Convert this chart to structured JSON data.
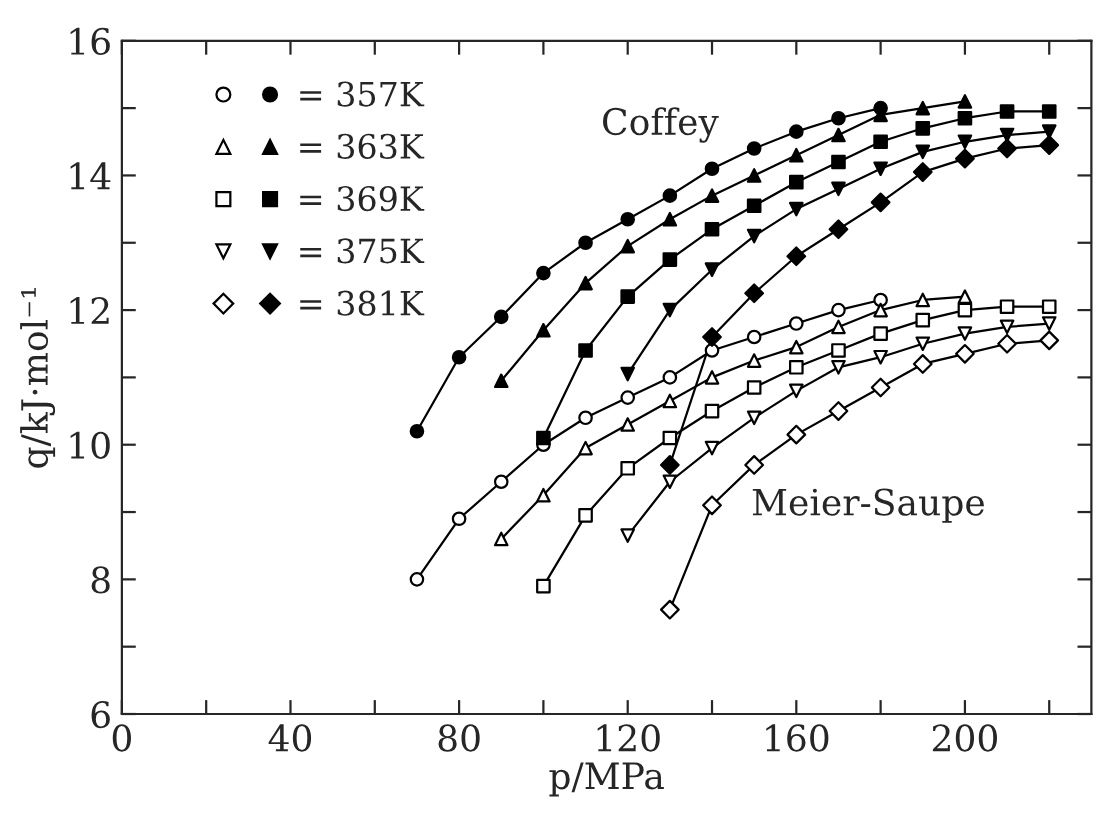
{
  "chart_data": {
    "type": "line",
    "xlabel": "p/MPa",
    "ylabel": "q/kJ·mol⁻¹",
    "xlim": [
      0,
      230
    ],
    "ylim": [
      6,
      16
    ],
    "xticks": [
      0,
      {
        "value": 20,
        "label": null
      },
      40,
      {
        "value": 60,
        "label": null
      },
      80,
      {
        "value": 100,
        "label": null
      },
      120,
      {
        "value": 140,
        "label": null
      },
      160,
      {
        "value": 180,
        "label": null
      },
      200,
      {
        "value": 220,
        "label": null
      }
    ],
    "yticks": [
      6,
      {
        "value": 7,
        "label": null
      },
      8,
      {
        "value": 9,
        "label": null
      },
      10,
      {
        "value": 11,
        "label": null
      },
      12,
      {
        "value": 13,
        "label": null
      },
      14,
      {
        "value": 15,
        "label": null
      },
      16
    ],
    "legend": "top left",
    "grid": false,
    "annotations": [
      "Coffey",
      "Meier-Saupe"
    ],
    "series": [
      {
        "color": "#ffffff",
        "marker": "circle",
        "x": [
          70,
          80,
          90,
          100,
          110,
          120,
          130,
          140,
          150,
          160,
          170,
          180
        ],
        "values": [
          8.0,
          8.9,
          9.45,
          10.0,
          10.4,
          10.7,
          11.0,
          11.4,
          11.6,
          11.8,
          12.0,
          12.15
        ]
      },
      {
        "name": "= 357K",
        "color": "#000000",
        "marker": "circle",
        "x": [
          70,
          80,
          90,
          100,
          110,
          120,
          130,
          140,
          150,
          160,
          170,
          180
        ],
        "values": [
          10.2,
          11.3,
          11.9,
          12.55,
          13.0,
          13.35,
          13.7,
          14.1,
          14.4,
          14.65,
          14.85,
          15.0
        ]
      },
      {
        "color": "#ffffff",
        "marker": "triangle",
        "x": [
          90,
          100,
          110,
          120,
          130,
          140,
          150,
          160,
          170,
          180,
          190,
          200
        ],
        "values": [
          8.6,
          9.25,
          9.95,
          10.3,
          10.65,
          11.0,
          11.25,
          11.45,
          11.75,
          12.0,
          12.15,
          12.2
        ]
      },
      {
        "name": "= 363K",
        "color": "#000000",
        "marker": "triangle",
        "x": [
          90,
          100,
          110,
          120,
          130,
          140,
          150,
          160,
          170,
          180,
          190,
          200
        ],
        "values": [
          10.95,
          11.7,
          12.4,
          12.95,
          13.35,
          13.7,
          14.0,
          14.3,
          14.6,
          14.9,
          15.0,
          15.1
        ]
      },
      {
        "color": "#ffffff",
        "marker": "square",
        "x": [
          100,
          110,
          120,
          130,
          140,
          150,
          160,
          170,
          180,
          190,
          200,
          210,
          220
        ],
        "values": [
          7.9,
          8.95,
          9.65,
          10.1,
          10.5,
          10.85,
          11.15,
          11.4,
          11.65,
          11.85,
          12.0,
          12.05,
          12.05
        ]
      },
      {
        "name": "= 369K",
        "color": "#000000",
        "marker": "square",
        "x": [
          100,
          110,
          120,
          130,
          140,
          150,
          160,
          170,
          180,
          190,
          200,
          210,
          220
        ],
        "values": [
          10.1,
          11.4,
          12.2,
          12.75,
          13.2,
          13.55,
          13.9,
          14.2,
          14.5,
          14.7,
          14.85,
          14.95,
          14.95
        ]
      },
      {
        "color": "#ffffff",
        "marker": "triangle_down",
        "x": [
          120,
          130,
          140,
          150,
          160,
          170,
          180,
          190,
          200,
          210,
          220
        ],
        "values": [
          8.65,
          9.45,
          9.95,
          10.4,
          10.8,
          11.15,
          11.3,
          11.5,
          11.65,
          11.75,
          11.8
        ]
      },
      {
        "name": "= 375K",
        "color": "#000000",
        "marker": "triangle_down",
        "x": [
          120,
          130,
          140,
          150,
          160,
          170,
          180,
          190,
          200,
          210,
          220
        ],
        "values": [
          11.05,
          12.0,
          12.6,
          13.1,
          13.5,
          13.8,
          14.1,
          14.35,
          14.5,
          14.6,
          14.65
        ]
      },
      {
        "color": "#ffffff",
        "marker": "diamond",
        "x": [
          130,
          140,
          150,
          160,
          170,
          180,
          190,
          200,
          210,
          220
        ],
        "values": [
          7.55,
          9.1,
          9.7,
          10.15,
          10.5,
          10.85,
          11.2,
          11.35,
          11.5,
          11.55
        ]
      },
      {
        "name": "= 381K",
        "color": "#000000",
        "marker": "diamond",
        "x": [
          130,
          140,
          150,
          160,
          170,
          180,
          190,
          200,
          210,
          220
        ],
        "values": [
          9.7,
          11.6,
          12.25,
          12.8,
          13.2,
          13.6,
          14.05,
          14.25,
          14.4,
          14.45
        ]
      }
    ]
  }
}
